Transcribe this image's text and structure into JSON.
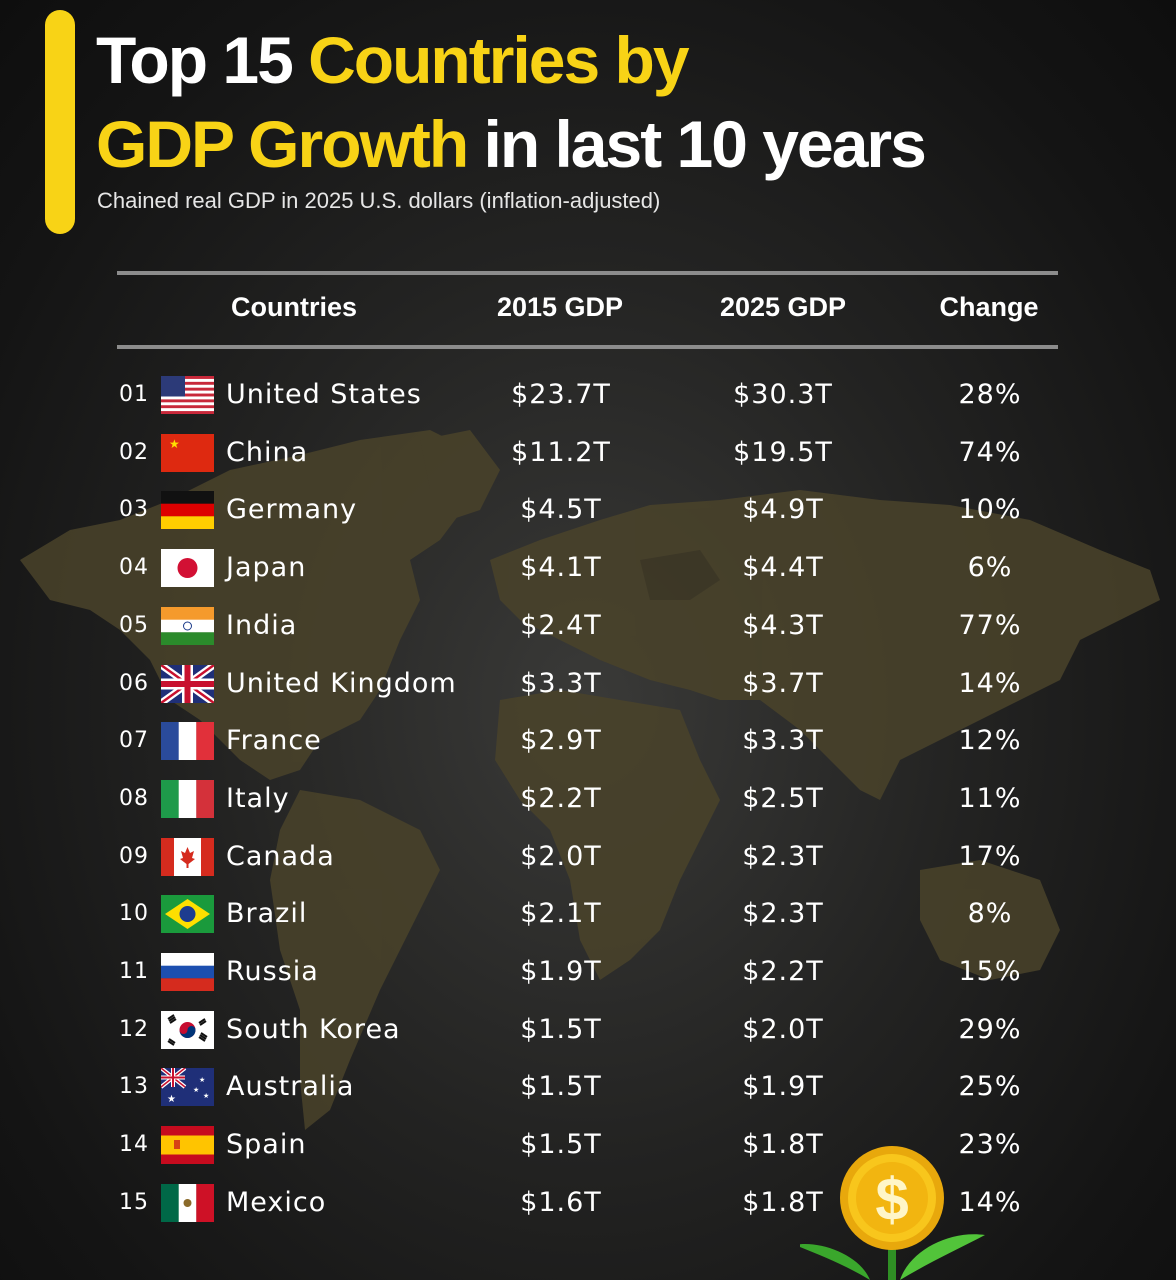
{
  "title": {
    "part1": "Top 15 ",
    "part2": "Countries by",
    "part3": "GDP Growth",
    "part4": " in last 10 years"
  },
  "subtitle": "Chained real GDP in 2025 U.S. dollars (inflation-adjusted)",
  "colors": {
    "accent": "#f8d316",
    "background": "#1c1c1c",
    "map": "#4a432a"
  },
  "chart_data": {
    "type": "table",
    "title": "Top 15 Countries by GDP Growth in last 10 years",
    "subtitle": "Chained real GDP in 2025 U.S. dollars (inflation-adjusted)",
    "columns": [
      "Countries",
      "2015 GDP",
      "2025 GDP",
      "Change"
    ],
    "rows": [
      {
        "rank": "01",
        "country": "United States",
        "flag": "us-flag-icon",
        "gdp2015": "$23.7T",
        "gdp2025": "$30.3T",
        "change": "28%"
      },
      {
        "rank": "02",
        "country": "China",
        "flag": "china-flag-icon",
        "gdp2015": "$11.2T",
        "gdp2025": "$19.5T",
        "change": "74%"
      },
      {
        "rank": "03",
        "country": "Germany",
        "flag": "germany-flag-icon",
        "gdp2015": "$4.5T",
        "gdp2025": "$4.9T",
        "change": "10%"
      },
      {
        "rank": "04",
        "country": "Japan",
        "flag": "japan-flag-icon",
        "gdp2015": "$4.1T",
        "gdp2025": "$4.4T",
        "change": "6%"
      },
      {
        "rank": "05",
        "country": "India",
        "flag": "india-flag-icon",
        "gdp2015": "$2.4T",
        "gdp2025": "$4.3T",
        "change": "77%"
      },
      {
        "rank": "06",
        "country": "United Kingdom",
        "flag": "uk-flag-icon",
        "gdp2015": "$3.3T",
        "gdp2025": "$3.7T",
        "change": "14%"
      },
      {
        "rank": "07",
        "country": "France",
        "flag": "france-flag-icon",
        "gdp2015": "$2.9T",
        "gdp2025": "$3.3T",
        "change": "12%"
      },
      {
        "rank": "08",
        "country": "Italy",
        "flag": "italy-flag-icon",
        "gdp2015": "$2.2T",
        "gdp2025": "$2.5T",
        "change": "11%"
      },
      {
        "rank": "09",
        "country": "Canada",
        "flag": "canada-flag-icon",
        "gdp2015": "$2.0T",
        "gdp2025": "$2.3T",
        "change": "17%"
      },
      {
        "rank": "10",
        "country": "Brazil",
        "flag": "brazil-flag-icon",
        "gdp2015": "$2.1T",
        "gdp2025": "$2.3T",
        "change": "8%"
      },
      {
        "rank": "11",
        "country": "Russia",
        "flag": "russia-flag-icon",
        "gdp2015": "$1.9T",
        "gdp2025": "$2.2T",
        "change": "15%"
      },
      {
        "rank": "12",
        "country": "South Korea",
        "flag": "south-korea-flag-icon",
        "gdp2015": "$1.5T",
        "gdp2025": "$2.0T",
        "change": "29%"
      },
      {
        "rank": "13",
        "country": "Australia",
        "flag": "australia-flag-icon",
        "gdp2015": "$1.5T",
        "gdp2025": "$1.9T",
        "change": "25%"
      },
      {
        "rank": "14",
        "country": "Spain",
        "flag": "spain-flag-icon",
        "gdp2015": "$1.5T",
        "gdp2025": "$1.8T",
        "change": "23%"
      },
      {
        "rank": "15",
        "country": "Mexico",
        "flag": "mexico-flag-icon",
        "gdp2015": "$1.6T",
        "gdp2025": "$1.8T",
        "change": "14%"
      }
    ]
  }
}
